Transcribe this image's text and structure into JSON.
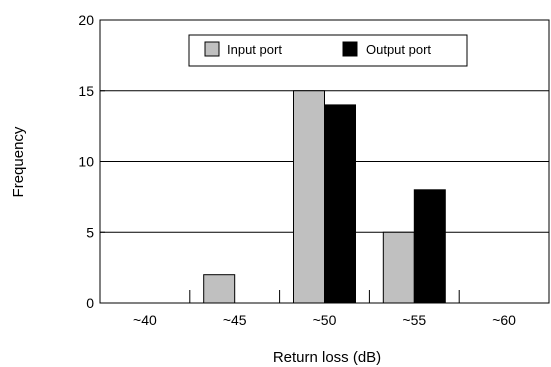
{
  "chart_data": {
    "type": "bar",
    "xlabel": "Return loss (dB)",
    "ylabel": "Frequency",
    "categories": [
      "~40",
      "~45",
      "~50",
      "~55",
      "~60"
    ],
    "series": [
      {
        "name": "Input port",
        "color": "#c0c0c0",
        "values": [
          0,
          2,
          15,
          5,
          0
        ]
      },
      {
        "name": "Output port",
        "color": "#000000",
        "values": [
          0,
          0,
          14,
          8,
          0
        ]
      }
    ],
    "ylim": [
      0,
      20
    ],
    "yticks": [
      "0",
      "5",
      "10",
      "15",
      "20"
    ],
    "grid": "horizontal",
    "legend_position": "top-center"
  }
}
